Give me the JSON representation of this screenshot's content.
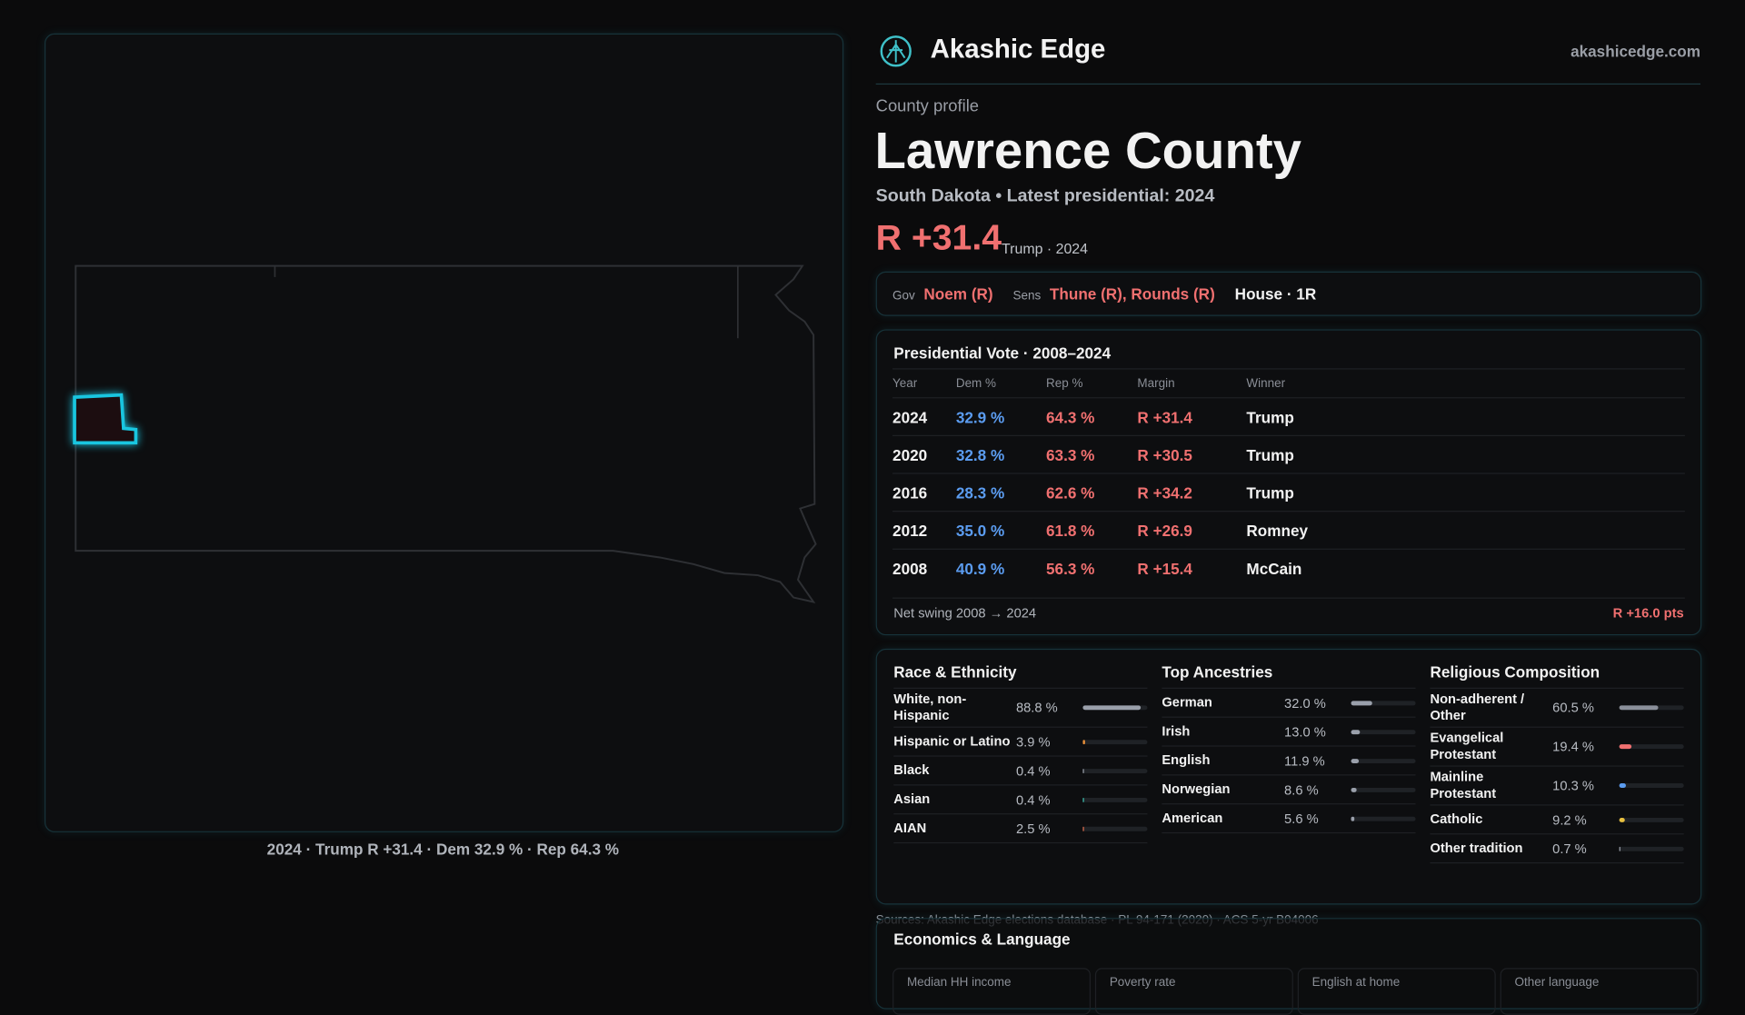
{
  "header": {
    "brand": "Akashic Edge",
    "site": "akashicedge.com"
  },
  "profile": {
    "label": "County profile",
    "name": "Lawrence County",
    "subtitle": "South Dakota • Latest presidential: 2024",
    "margin": "R +31.4",
    "margin_note": "Trump · 2024"
  },
  "officials": {
    "gov_label": "Gov",
    "gov": "Noem (R)",
    "sens_label": "Sens",
    "sens": "Thune (R), Rounds (R)",
    "house": "House · 1R"
  },
  "vote_table": {
    "title": "Presidential Vote · 2008–2024",
    "columns": [
      "Year",
      "Dem %",
      "Rep %",
      "Margin",
      "Winner"
    ],
    "rows": [
      [
        "2024",
        "32.9 %",
        "64.3 %",
        "R +31.4",
        "Trump"
      ],
      [
        "2020",
        "32.8 %",
        "63.3 %",
        "R +30.5",
        "Trump"
      ],
      [
        "2016",
        "28.3 %",
        "62.6 %",
        "R +34.2",
        "Trump"
      ],
      [
        "2012",
        "35.0 %",
        "61.8 %",
        "R +26.9",
        "Romney"
      ],
      [
        "2008",
        "40.9 %",
        "56.3 %",
        "R +15.4",
        "McCain"
      ]
    ],
    "footer_label": "Net swing 2008 → 2024",
    "footer_value": "R +16.0 pts"
  },
  "demographics": [
    {
      "title": "Race & Ethnicity",
      "items": [
        {
          "name": "White, non-Hispanic",
          "value": 88.8,
          "label": "88.8 %",
          "color": "#9aa0ab"
        },
        {
          "name": "Hispanic or Latino",
          "value": 3.9,
          "label": "3.9 %",
          "color": "#e8903a"
        },
        {
          "name": "Black",
          "value": 0.4,
          "label": "0.4 %",
          "color": "#9aa0ab"
        },
        {
          "name": "Asian",
          "value": 0.4,
          "label": "0.4 %",
          "color": "#3fc1b0"
        },
        {
          "name": "AIAN",
          "value": 2.5,
          "label": "2.5 %",
          "color": "#e07050"
        }
      ]
    },
    {
      "title": "Top Ancestries",
      "items": [
        {
          "name": "German",
          "value": 32.0,
          "label": "32.0 %",
          "color": "#9aa0ab"
        },
        {
          "name": "Irish",
          "value": 13.0,
          "label": "13.0 %",
          "color": "#9aa0ab"
        },
        {
          "name": "English",
          "value": 11.9,
          "label": "11.9 %",
          "color": "#9aa0ab"
        },
        {
          "name": "Norwegian",
          "value": 8.6,
          "label": "8.6 %",
          "color": "#9aa0ab"
        },
        {
          "name": "American",
          "value": 5.6,
          "label": "5.6 %",
          "color": "#9aa0ab"
        }
      ]
    },
    {
      "title": "Religious Composition",
      "items": [
        {
          "name": "Non-adherent / Other",
          "value": 60.5,
          "label": "60.5 %",
          "color": "#8a8f9a"
        },
        {
          "name": "Evangelical Protestant",
          "value": 19.4,
          "label": "19.4 %",
          "color": "#f07070"
        },
        {
          "name": "Mainline Protestant",
          "value": 10.3,
          "label": "10.3 %",
          "color": "#5b9cf0"
        },
        {
          "name": "Catholic",
          "value": 9.2,
          "label": "9.2 %",
          "color": "#e8c040"
        },
        {
          "name": "Other tradition",
          "value": 0.7,
          "label": "0.7 %",
          "color": "#9aa0ab"
        }
      ]
    }
  ],
  "sources": "Sources: Akashic Edge elections database · PL 94-171 (2020) · ACS 5-yr B04006",
  "economics": {
    "title": "Economics & Language",
    "columns": [
      "Median HH income",
      "Poverty rate",
      "English at home",
      "Other language"
    ]
  },
  "map_caption": "2024 · Trump R +31.4 · Dem 32.9 % · Rep 64.3 %"
}
